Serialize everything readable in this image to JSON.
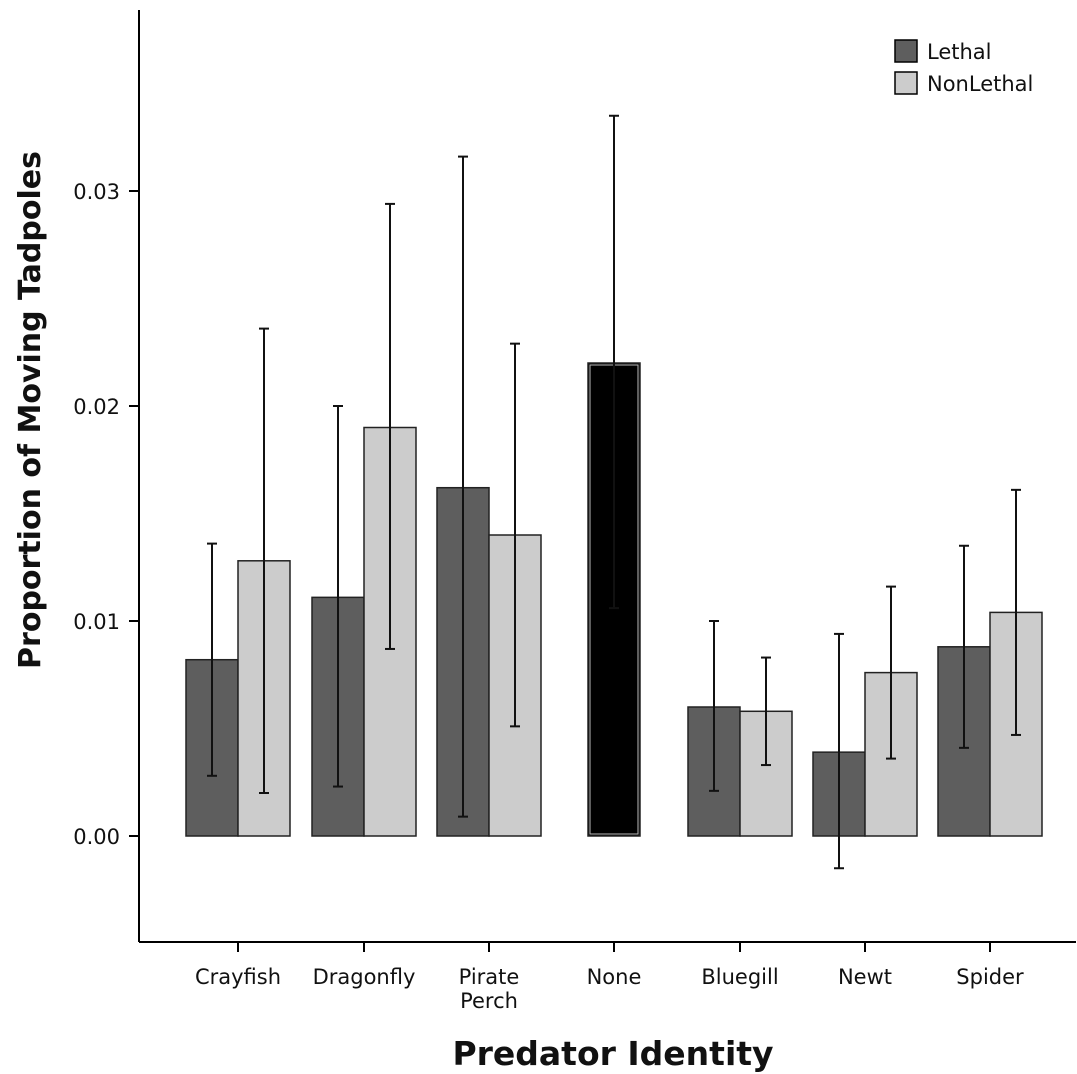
{
  "chart_data": {
    "type": "bar",
    "xlabel": "Predator Identity",
    "ylabel": "Proportion of Moving Tadpoles",
    "ylim": [
      -0.005,
      0.039
    ],
    "yticks": [
      "0.00",
      "0.01",
      "0.02",
      "0.03"
    ],
    "ytick_values": [
      0.0,
      0.01,
      0.02,
      0.03
    ],
    "grid": false,
    "legend_position": "top-right",
    "categories": [
      {
        "label": "Crayfish"
      },
      {
        "label": "Dragonfly"
      },
      {
        "label": "Pirate Perch",
        "label_lines": [
          "Pirate",
          "Perch"
        ]
      },
      {
        "label": "None"
      },
      {
        "label": "Bluegill"
      },
      {
        "label": "Newt"
      },
      {
        "label": "Spider"
      }
    ],
    "series": [
      {
        "name": "Lethal",
        "color": "#5e5e5e",
        "values": [
          0.0082,
          0.0111,
          0.0162,
          null,
          0.006,
          0.0039,
          0.0088
        ],
        "err_low": [
          0.0028,
          0.0023,
          0.0009,
          null,
          0.0021,
          -0.0015,
          0.0041
        ],
        "err_high": [
          0.0136,
          0.02,
          0.0316,
          null,
          0.01,
          0.0094,
          0.0135
        ]
      },
      {
        "name": "NonLethal",
        "color": "#cccccc",
        "values": [
          0.0128,
          0.019,
          0.014,
          null,
          0.0058,
          0.0076,
          0.0104
        ],
        "err_low": [
          0.002,
          0.0087,
          0.0051,
          null,
          0.0033,
          0.0036,
          0.0047
        ],
        "err_high": [
          0.0236,
          0.0294,
          0.0229,
          null,
          0.0083,
          0.0116,
          0.0161
        ]
      }
    ],
    "control": {
      "category": "None",
      "color": "#000000",
      "value": 0.022,
      "err_low": 0.0106,
      "err_high": 0.0335
    }
  }
}
